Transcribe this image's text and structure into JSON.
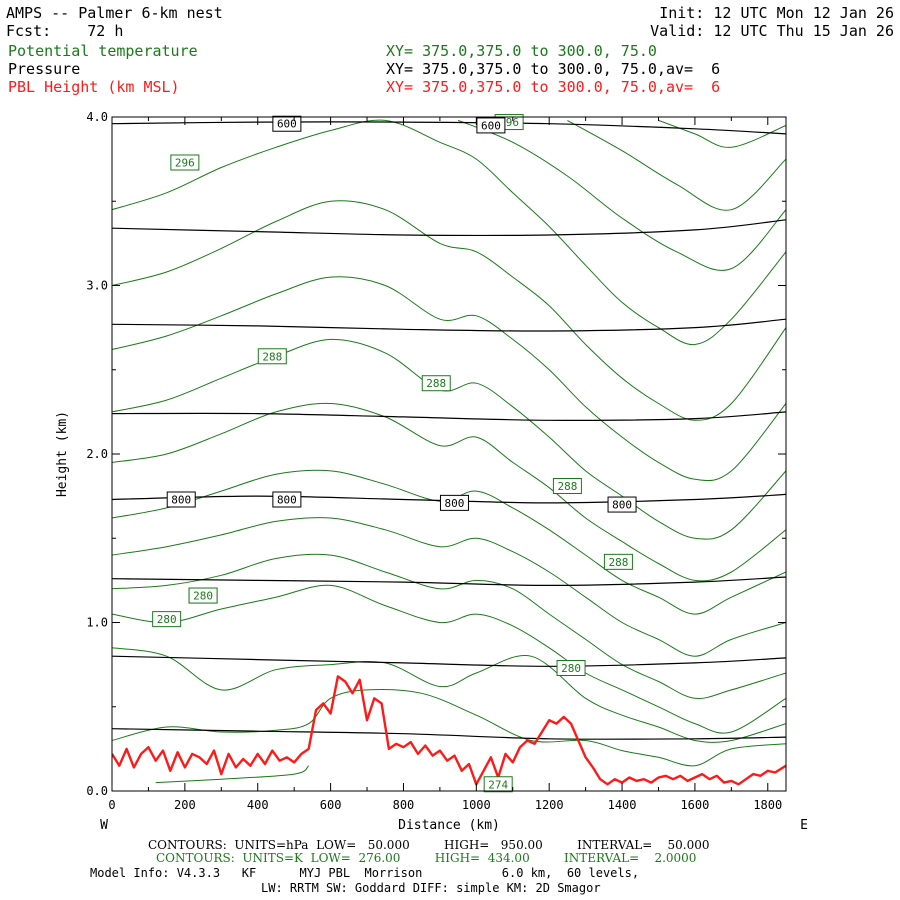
{
  "header": {
    "title": "AMPS -- Palmer 6-km nest",
    "fcst_label": "Fcst:",
    "fcst_value": "72 h",
    "init_label": "Init:",
    "init_value": "12 UTC Mon 12 Jan 26",
    "valid_label": "Valid:",
    "valid_value": "12 UTC Thu 15 Jan 26",
    "fields": [
      {
        "name": "Potential temperature",
        "xy": "XY= 375.0,375.0 to 300.0, 75.0",
        "color": "#1a7a1a"
      },
      {
        "name": "Pressure",
        "xy": "XY= 375.0,375.0 to 300.0, 75.0,av=  6",
        "color": "#000000"
      },
      {
        "name": "PBL Height (km MSL)",
        "xy": "XY= 375.0,375.0 to 300.0, 75.0,av=  6",
        "color": "#ff1a1a"
      }
    ]
  },
  "footer": {
    "pressure_contours": "CONTOURS:  UNITS=hPa  LOW=   50.000         HIGH=   950.00         INTERVAL=    50.000",
    "theta_contours": "CONTOURS:  UNITS=K  LOW=  276.00         HIGH=  434.00         INTERVAL=    2.0000",
    "model_info_1": "Model Info: V4.3.3   KF      MYJ PBL  Morrison           6.0 km,  60 levels,",
    "model_info_2": "LW: RRTM SW: Goddard DIFF: simple KM: 2D Smagor"
  },
  "chart_data": {
    "type": "line",
    "xlabel": "Distance (km)",
    "ylabel": "Height (km)",
    "xlim": [
      0,
      1850
    ],
    "ylim": [
      0,
      4.0
    ],
    "x_ticks": [
      0,
      200,
      400,
      600,
      800,
      1000,
      1200,
      1400,
      1600,
      1800
    ],
    "x_tick_labels": [
      "0",
      "200",
      "400",
      "600",
      "800",
      "1000",
      "1200",
      "1400",
      "1600",
      "1800"
    ],
    "y_ticks": [
      0,
      1.0,
      2.0,
      3.0,
      4.0
    ],
    "y_tick_labels": [
      "0.0",
      "1.0",
      "2.0",
      "3.0",
      "4.0"
    ],
    "left_end_label": "W",
    "right_end_label": "E",
    "colors": {
      "theta": "#1a7a1a",
      "pressure": "#000000",
      "pbl": "#ff1a1a"
    },
    "pressure_series": [
      {
        "value": 950,
        "x": [
          0,
          400,
          800,
          1200,
          1600,
          1850
        ],
        "y": [
          0.37,
          0.355,
          0.34,
          0.31,
          0.31,
          0.32
        ]
      },
      {
        "value": 900,
        "x": [
          0,
          400,
          800,
          1200,
          1600,
          1850
        ],
        "y": [
          0.8,
          0.78,
          0.76,
          0.74,
          0.76,
          0.79
        ]
      },
      {
        "value": 850,
        "x": [
          0,
          400,
          800,
          1200,
          1600,
          1850
        ],
        "y": [
          1.26,
          1.25,
          1.24,
          1.22,
          1.24,
          1.27
        ]
      },
      {
        "value": 800,
        "x": [
          0,
          400,
          800,
          1200,
          1600,
          1850
        ],
        "y": [
          1.73,
          1.75,
          1.73,
          1.71,
          1.73,
          1.76
        ]
      },
      {
        "value": 750,
        "x": [
          0,
          400,
          800,
          1200,
          1600,
          1850
        ],
        "y": [
          2.24,
          2.24,
          2.22,
          2.2,
          2.21,
          2.25
        ]
      },
      {
        "value": 700,
        "x": [
          0,
          400,
          800,
          1200,
          1600,
          1850
        ],
        "y": [
          2.77,
          2.76,
          2.74,
          2.73,
          2.75,
          2.8
        ]
      },
      {
        "value": 650,
        "x": [
          0,
          400,
          800,
          1200,
          1600,
          1850
        ],
        "y": [
          3.34,
          3.32,
          3.3,
          3.3,
          3.33,
          3.39
        ]
      },
      {
        "value": 600,
        "x": [
          0,
          400,
          800,
          1200,
          1600,
          1850
        ],
        "y": [
          3.96,
          3.97,
          3.97,
          3.96,
          3.93,
          3.9
        ]
      }
    ],
    "pressure_labels": [
      {
        "text": "600",
        "x": 480,
        "y": 3.96
      },
      {
        "text": "600",
        "x": 1040,
        "y": 3.95
      },
      {
        "text": "800",
        "x": 190,
        "y": 1.73
      },
      {
        "text": "800",
        "x": 480,
        "y": 1.73
      },
      {
        "text": "800",
        "x": 940,
        "y": 1.71
      },
      {
        "text": "800",
        "x": 1400,
        "y": 1.7
      }
    ],
    "theta_series": [
      {
        "value": 274,
        "x": [
          120,
          300,
          500,
          540
        ],
        "y": [
          0.05,
          0.07,
          0.1,
          0.15
        ]
      },
      {
        "value": 276,
        "x": [
          0,
          150,
          300,
          450,
          540,
          600,
          700,
          850,
          1000,
          1150,
          1300,
          1400,
          1500,
          1600,
          1700,
          1850
        ],
        "y": [
          0.3,
          0.38,
          0.35,
          0.36,
          0.4,
          0.55,
          0.6,
          0.58,
          0.45,
          0.3,
          0.3,
          0.24,
          0.2,
          0.15,
          0.25,
          0.28
        ]
      },
      {
        "value": 278,
        "x": [
          0,
          150,
          300,
          450,
          600,
          750,
          900,
          1000,
          1150,
          1300,
          1400,
          1500,
          1600,
          1700,
          1850
        ],
        "y": [
          0.85,
          0.8,
          0.6,
          0.72,
          0.75,
          0.76,
          0.62,
          0.7,
          0.8,
          0.55,
          0.45,
          0.38,
          0.3,
          0.3,
          0.4
        ]
      },
      {
        "value": 280,
        "x": [
          0,
          150,
          300,
          450,
          600,
          750,
          900,
          1000,
          1100,
          1200,
          1300,
          1400,
          1500,
          1600,
          1700,
          1850
        ],
        "y": [
          1.05,
          1.0,
          1.08,
          1.15,
          1.22,
          1.1,
          1.0,
          1.05,
          0.98,
          0.85,
          0.7,
          0.6,
          0.5,
          0.4,
          0.35,
          0.55
        ]
      },
      {
        "value": 282,
        "x": [
          0,
          150,
          300,
          450,
          600,
          750,
          900,
          1000,
          1100,
          1200,
          1300,
          1400,
          1500,
          1600,
          1700,
          1850
        ],
        "y": [
          1.2,
          1.22,
          1.28,
          1.38,
          1.4,
          1.3,
          1.2,
          1.25,
          1.2,
          1.05,
          0.9,
          0.75,
          0.65,
          0.55,
          0.6,
          0.7
        ]
      },
      {
        "value": 284,
        "x": [
          0,
          150,
          300,
          450,
          600,
          750,
          900,
          1000,
          1100,
          1200,
          1300,
          1400,
          1500,
          1600,
          1700,
          1850
        ],
        "y": [
          1.4,
          1.45,
          1.52,
          1.6,
          1.62,
          1.55,
          1.45,
          1.5,
          1.42,
          1.3,
          1.15,
          1.0,
          0.9,
          0.8,
          0.9,
          1.0
        ]
      },
      {
        "value": 286,
        "x": [
          0,
          150,
          300,
          450,
          600,
          750,
          900,
          1000,
          1100,
          1200,
          1300,
          1400,
          1500,
          1600,
          1700,
          1850
        ],
        "y": [
          1.62,
          1.68,
          1.78,
          1.88,
          1.9,
          1.82,
          1.72,
          1.78,
          1.68,
          1.55,
          1.4,
          1.25,
          1.15,
          1.05,
          1.15,
          1.3
        ]
      },
      {
        "value": 288,
        "x": [
          0,
          150,
          300,
          450,
          600,
          750,
          900,
          1000,
          1100,
          1200,
          1300,
          1400,
          1500,
          1600,
          1700,
          1850
        ],
        "y": [
          1.95,
          2.0,
          2.12,
          2.25,
          2.3,
          2.22,
          2.05,
          2.1,
          1.95,
          1.8,
          1.62,
          1.48,
          1.35,
          1.25,
          1.3,
          1.55
        ]
      },
      {
        "value": 290,
        "x": [
          0,
          150,
          300,
          450,
          600,
          750,
          900,
          1000,
          1100,
          1200,
          1300,
          1400,
          1500,
          1600,
          1700,
          1850
        ],
        "y": [
          2.25,
          2.32,
          2.45,
          2.58,
          2.68,
          2.6,
          2.38,
          2.42,
          2.28,
          2.1,
          1.9,
          1.75,
          1.6,
          1.5,
          1.55,
          1.9
        ]
      },
      {
        "value": 292,
        "x": [
          0,
          150,
          300,
          450,
          600,
          750,
          900,
          1000,
          1100,
          1200,
          1300,
          1400,
          1500,
          1600,
          1700,
          1850
        ],
        "y": [
          2.62,
          2.7,
          2.82,
          2.95,
          3.05,
          3.0,
          2.8,
          2.82,
          2.68,
          2.5,
          2.28,
          2.1,
          1.95,
          1.85,
          1.9,
          2.3
        ]
      },
      {
        "value": 294,
        "x": [
          0,
          150,
          300,
          450,
          600,
          750,
          900,
          1000,
          1100,
          1200,
          1300,
          1400,
          1500,
          1600,
          1700,
          1850
        ],
        "y": [
          3.0,
          3.08,
          3.22,
          3.38,
          3.5,
          3.45,
          3.25,
          3.2,
          3.05,
          2.88,
          2.65,
          2.45,
          2.3,
          2.2,
          2.3,
          2.75
        ]
      },
      {
        "value": 296,
        "x": [
          0,
          150,
          300,
          450,
          600,
          750,
          900,
          1000,
          1100,
          1200,
          1300,
          1400,
          1500,
          1600,
          1700,
          1850
        ],
        "y": [
          3.45,
          3.55,
          3.7,
          3.82,
          3.92,
          3.98,
          3.85,
          3.75,
          3.55,
          3.35,
          3.12,
          2.9,
          2.75,
          2.65,
          2.8,
          3.2
        ]
      },
      {
        "value": 298,
        "x": [
          950,
          1100,
          1250,
          1400,
          1550,
          1700,
          1850
        ],
        "y": [
          3.98,
          3.85,
          3.65,
          3.4,
          3.2,
          3.1,
          3.45
        ]
      },
      {
        "value": 300,
        "x": [
          1250,
          1400,
          1550,
          1700,
          1850
        ],
        "y": [
          3.98,
          3.8,
          3.6,
          3.45,
          3.75
        ]
      },
      {
        "value": 302,
        "x": [
          1500,
          1600,
          1700,
          1850
        ],
        "y": [
          3.98,
          3.9,
          3.82,
          3.95
        ]
      }
    ],
    "theta_labels": [
      {
        "text": "296",
        "x": 200,
        "y": 3.73
      },
      {
        "text": "296",
        "x": 1090,
        "y": 3.97
      },
      {
        "text": "288",
        "x": 440,
        "y": 2.58
      },
      {
        "text": "288",
        "x": 890,
        "y": 2.42
      },
      {
        "text": "288",
        "x": 1250,
        "y": 1.81
      },
      {
        "text": "288",
        "x": 1390,
        "y": 1.36
      },
      {
        "text": "280",
        "x": 250,
        "y": 1.16
      },
      {
        "text": "280",
        "x": 250,
        "y": 1.16
      },
      {
        "text": "280",
        "x": 150,
        "y": 1.02
      },
      {
        "text": "280",
        "x": 1260,
        "y": 0.73
      },
      {
        "text": "274",
        "x": 1060,
        "y": 0.04
      }
    ],
    "pbl_series": {
      "name": "PBL Height (km MSL)",
      "x": [
        0,
        20,
        40,
        60,
        80,
        100,
        120,
        140,
        160,
        180,
        200,
        220,
        240,
        260,
        280,
        300,
        320,
        340,
        360,
        380,
        400,
        420,
        440,
        460,
        480,
        500,
        520,
        540,
        560,
        580,
        600,
        620,
        640,
        660,
        680,
        700,
        720,
        740,
        760,
        780,
        800,
        820,
        840,
        860,
        880,
        900,
        920,
        940,
        960,
        980,
        1000,
        1020,
        1040,
        1060,
        1080,
        1100,
        1120,
        1140,
        1160,
        1180,
        1200,
        1220,
        1240,
        1260,
        1280,
        1300,
        1320,
        1340,
        1360,
        1380,
        1400,
        1420,
        1440,
        1460,
        1480,
        1500,
        1520,
        1540,
        1560,
        1580,
        1600,
        1620,
        1640,
        1660,
        1680,
        1700,
        1720,
        1740,
        1760,
        1780,
        1800,
        1820,
        1850
      ],
      "y": [
        0.22,
        0.15,
        0.25,
        0.14,
        0.22,
        0.26,
        0.18,
        0.24,
        0.12,
        0.23,
        0.14,
        0.22,
        0.2,
        0.16,
        0.24,
        0.1,
        0.22,
        0.14,
        0.19,
        0.15,
        0.22,
        0.16,
        0.24,
        0.18,
        0.2,
        0.17,
        0.22,
        0.25,
        0.48,
        0.52,
        0.46,
        0.68,
        0.65,
        0.58,
        0.66,
        0.42,
        0.55,
        0.52,
        0.25,
        0.28,
        0.26,
        0.29,
        0.22,
        0.27,
        0.21,
        0.24,
        0.18,
        0.21,
        0.12,
        0.16,
        0.04,
        0.12,
        0.2,
        0.08,
        0.22,
        0.17,
        0.26,
        0.3,
        0.28,
        0.35,
        0.42,
        0.4,
        0.44,
        0.4,
        0.3,
        0.2,
        0.14,
        0.07,
        0.04,
        0.07,
        0.05,
        0.08,
        0.06,
        0.07,
        0.05,
        0.08,
        0.09,
        0.07,
        0.09,
        0.06,
        0.08,
        0.1,
        0.07,
        0.09,
        0.05,
        0.06,
        0.04,
        0.07,
        0.1,
        0.09,
        0.12,
        0.11,
        0.15
      ]
    }
  }
}
